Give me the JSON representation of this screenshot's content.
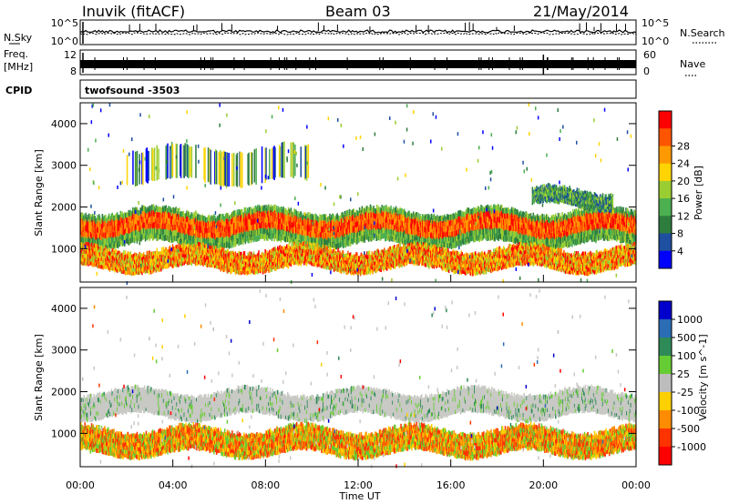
{
  "header": {
    "station": "Inuvik (fitACF)",
    "beam": "Beam 03",
    "date": "21/May/2014"
  },
  "noise_panel": {
    "left_label": "N.Sky",
    "left_ticks": [
      "10^5",
      "10^0"
    ],
    "right_ticks": [
      "10^5",
      "10^0"
    ],
    "right_label": "N.Search"
  },
  "freq_panel": {
    "left_label_1": "Freq.",
    "left_label_2": "[MHz]",
    "left_ticks": [
      "12",
      "8"
    ],
    "right_ticks": [
      "60",
      "0"
    ],
    "right_label": "Nave"
  },
  "cpid_panel": {
    "label": "CPID",
    "value": "twofsound -3503"
  },
  "chart_data": [
    {
      "type": "heatmap",
      "quantity": "Power",
      "ylabel": "Slant Range [km]",
      "ylim": [
        200,
        4500
      ],
      "yticks": [
        "1000",
        "2000",
        "3000",
        "4000"
      ],
      "xlim": [
        "00:00",
        "24:00"
      ],
      "colorbar_label": "Power [dB]",
      "colorbar_ticks": [
        "4",
        "8",
        "12",
        "16",
        "20",
        "24",
        "28"
      ],
      "colors": [
        "#0000ff",
        "#1e4fa0",
        "#2e7d3e",
        "#4caf50",
        "#9acd32",
        "#ffd400",
        "#ff9900",
        "#ff5500",
        "#ff0000"
      ],
      "bands": [
        {
          "from_hour": 0,
          "to_hour": 24,
          "range_low_km": 1100,
          "range_high_km": 1900,
          "level": "high"
        },
        {
          "from_hour": 0,
          "to_hour": 24,
          "range_low_km": 500,
          "range_high_km": 1000,
          "level": "medium"
        },
        {
          "from_hour": 19.5,
          "to_hour": 23,
          "range_low_km": 2000,
          "range_high_km": 2400,
          "level": "low"
        },
        {
          "from_hour": 2,
          "to_hour": 10,
          "range_low_km": 2600,
          "range_high_km": 3400,
          "level": "sparse"
        }
      ]
    },
    {
      "type": "heatmap",
      "quantity": "Velocity",
      "ylabel": "Slant Range [km]",
      "ylim": [
        200,
        4500
      ],
      "yticks": [
        "1000",
        "2000",
        "3000",
        "4000"
      ],
      "xlabel": "Time UT",
      "xticks": [
        "00:00",
        "04:00",
        "08:00",
        "12:00",
        "16:00",
        "20:00",
        "00:00"
      ],
      "colorbar_label": "Velocity [m s^-1]",
      "colorbar_ticks": [
        "1000",
        "500",
        "100",
        "25",
        "-25",
        "-100",
        "-500",
        "-1000"
      ],
      "colors": [
        "#0000cc",
        "#2a6db5",
        "#2e8b57",
        "#66cc33",
        "#bdbdbd",
        "#ffd000",
        "#ff8c00",
        "#ff3300",
        "#ff0000"
      ],
      "bands": [
        {
          "from_hour": 0,
          "to_hour": 24,
          "range_low_km": 1400,
          "range_high_km": 2000,
          "value": "ground scatter"
        },
        {
          "from_hour": 0,
          "to_hour": 24,
          "range_low_km": 500,
          "range_high_km": 1100,
          "value": -200
        }
      ]
    }
  ]
}
